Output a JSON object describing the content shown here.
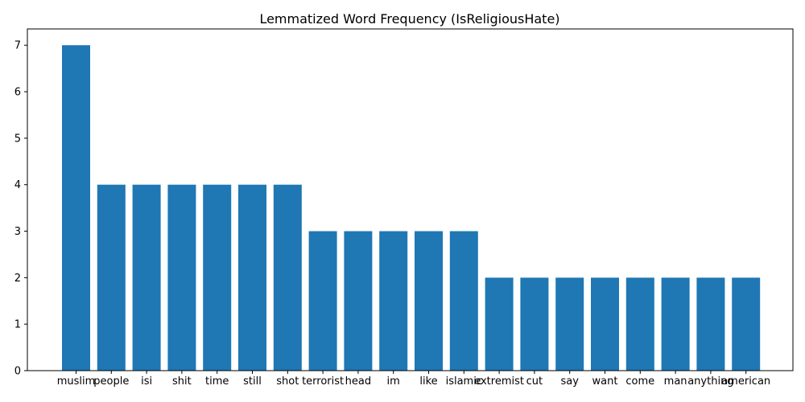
{
  "chart_data": {
    "type": "bar",
    "title": "Lemmatized Word Frequency (IsReligiousHate)",
    "xlabel": "",
    "ylabel": "",
    "categories": [
      "muslim",
      "people",
      "isi",
      "shit",
      "time",
      "still",
      "shot",
      "terrorist",
      "head",
      "im",
      "like",
      "islamic",
      "extremist",
      "cut",
      "say",
      "want",
      "come",
      "man",
      "anything",
      "american"
    ],
    "values": [
      7,
      4,
      4,
      4,
      4,
      4,
      4,
      3,
      3,
      3,
      3,
      3,
      2,
      2,
      2,
      2,
      2,
      2,
      2,
      2
    ],
    "ylim": [
      0,
      7.35
    ],
    "yticks": [
      0,
      1,
      2,
      3,
      4,
      5,
      6,
      7
    ],
    "grid": false,
    "legend": "none",
    "bar_color": "#1f77b4"
  }
}
